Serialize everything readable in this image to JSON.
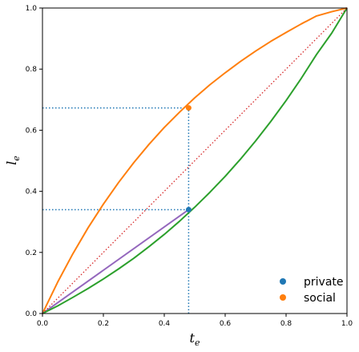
{
  "chart_data": {
    "type": "line",
    "xlabel": "t",
    "xlabel_sub": "e",
    "ylabel": "l",
    "ylabel_sub": "e",
    "xlim": [
      0,
      1
    ],
    "ylim": [
      0,
      1
    ],
    "xticks": [
      "0.0",
      "0.2",
      "0.4",
      "0.6",
      "0.8",
      "1.0"
    ],
    "yticks": [
      "0.0",
      "0.2",
      "0.4",
      "0.6",
      "0.8",
      "1.0"
    ],
    "grid": false,
    "legend_placement": "lower-right",
    "legend": [
      {
        "label": "private",
        "color": "#1f77b4"
      },
      {
        "label": "social",
        "color": "#ff7f0e"
      }
    ],
    "curves": [
      {
        "name": "social-curve",
        "color": "#ff7f0e",
        "style": "solid",
        "x": [
          0,
          0.05,
          0.1,
          0.15,
          0.2,
          0.25,
          0.3,
          0.35,
          0.4,
          0.45,
          0.5,
          0.55,
          0.6,
          0.65,
          0.7,
          0.75,
          0.8,
          0.85,
          0.9,
          0.95,
          1
        ],
        "y": [
          0,
          0.103,
          0.196,
          0.281,
          0.358,
          0.429,
          0.494,
          0.554,
          0.609,
          0.659,
          0.706,
          0.749,
          0.788,
          0.825,
          0.859,
          0.891,
          0.92,
          0.948,
          0.974,
          0.988,
          1
        ]
      },
      {
        "name": "purple-curve",
        "color": "#9467bd",
        "style": "solid",
        "x": [
          0,
          0.48
        ],
        "y": [
          0,
          0.34
        ]
      },
      {
        "name": "private-curve",
        "color": "#2ca02c",
        "style": "solid",
        "x": [
          0,
          0.05,
          0.1,
          0.15,
          0.2,
          0.25,
          0.3,
          0.35,
          0.4,
          0.45,
          0.5,
          0.55,
          0.6,
          0.65,
          0.7,
          0.75,
          0.8,
          0.85,
          0.9,
          0.95,
          1
        ],
        "y": [
          0,
          0.025,
          0.053,
          0.082,
          0.113,
          0.146,
          0.181,
          0.219,
          0.259,
          0.302,
          0.348,
          0.397,
          0.449,
          0.505,
          0.565,
          0.629,
          0.697,
          0.77,
          0.848,
          0.918,
          1
        ]
      },
      {
        "name": "diagonal-line",
        "color": "#d62728",
        "style": "dotted",
        "x": [
          0,
          1
        ],
        "y": [
          0,
          1
        ]
      }
    ],
    "reference_lines": [
      {
        "name": "vline-te",
        "color": "#1f77b4",
        "x": [
          0.48,
          0.48
        ],
        "y": [
          0,
          0.673
        ]
      },
      {
        "name": "hline-social",
        "color": "#1f77b4",
        "x": [
          0,
          0.48
        ],
        "y": [
          0.673,
          0.673
        ]
      },
      {
        "name": "hline-private",
        "color": "#1f77b4",
        "x": [
          0,
          0.48
        ],
        "y": [
          0.34,
          0.34
        ]
      }
    ],
    "points": [
      {
        "name": "private-point",
        "color": "#1f77b4",
        "x": 0.48,
        "y": 0.34
      },
      {
        "name": "social-point",
        "color": "#ff7f0e",
        "x": 0.48,
        "y": 0.673
      }
    ]
  }
}
